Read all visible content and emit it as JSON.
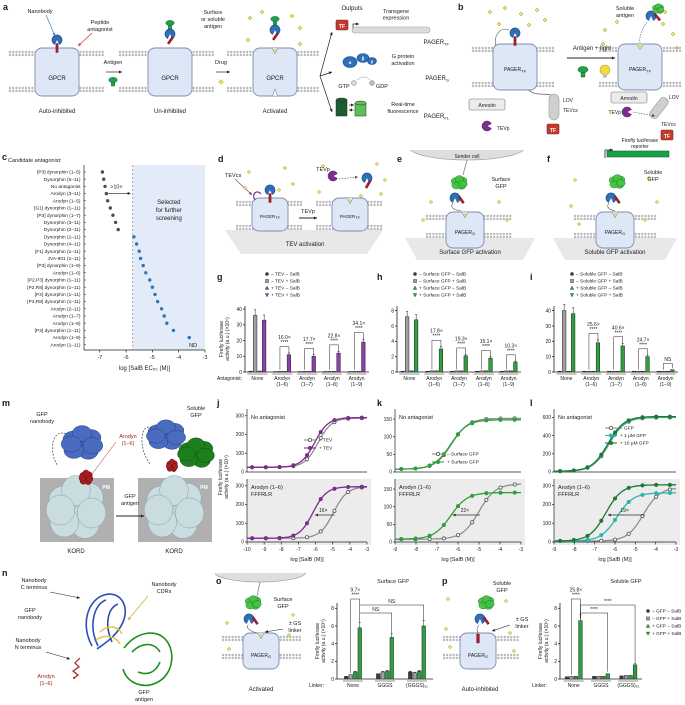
{
  "common": {
    "tf": "TF",
    "tevp": "TEVp",
    "tevcs": "TEVcs",
    "lov": "LOV",
    "arrestin": "Arrestin",
    "pm": "PM",
    "kord": "KORD",
    "pager": "PAGER",
    "gpcr": "GPCR",
    "sub_tf": "TF",
    "sub_g": "G",
    "sub_fl": "FL"
  },
  "panels": {
    "a": {
      "letter": "a",
      "nanobody": "Nanobody",
      "peptide1": "Peptide",
      "peptide2": "antagonist",
      "antigen": "Antigen",
      "surface1": "Surface",
      "surface2": "or soluble",
      "surface3": "antigen",
      "drug": "Drug",
      "state1": "Auto-inhibited",
      "state2": "Un-inhibited",
      "state3": "Activated",
      "outputs": "Outputs",
      "out1a": "Transgene",
      "out1b": "expression",
      "out2a": "G protein",
      "out2b": "activation",
      "gtp": "GTP",
      "gdp": "GDP",
      "out3a": "Real-time",
      "out3b": "fluorescence",
      "alpha": "α",
      "beta": "β",
      "gamma": "γ"
    },
    "b": {
      "letter": "b",
      "antigen_light": "Antigen + light",
      "soluble1": "Soluble",
      "soluble2": "antigen",
      "reporter1": "Firefly luciferase",
      "reporter2": "reporter"
    },
    "c": {
      "letter": "c"
    },
    "d": {
      "letter": "d",
      "arrow": "TEVp",
      "caption": "TEV activation"
    },
    "e": {
      "letter": "e",
      "sender": "Sender cell",
      "antigen1": "Surface",
      "antigen2": "GFP",
      "caption": "Surface GFP activation"
    },
    "f": {
      "letter": "f",
      "antigen1": "Soluble",
      "antigen2": "GFP",
      "caption": "Soluble GFP activation"
    },
    "g": {
      "letter": "g"
    },
    "h": {
      "letter": "h"
    },
    "i": {
      "letter": "i"
    },
    "j": {
      "letter": "j"
    },
    "k": {
      "letter": "k"
    },
    "l": {
      "letter": "l"
    },
    "m": {
      "letter": "m",
      "nb1": "GFP",
      "nb2": "nanobody",
      "arodyn1": "Arodyn",
      "arodyn2": "(1–6)",
      "soluble1": "Soluble",
      "soluble2": "GFP",
      "arrow1": "GFP",
      "arrow2": "antigen"
    },
    "n": {
      "letter": "n",
      "c1": "Nanobody",
      "c2": "C terminus",
      "nb1": "GFP",
      "nb2": "nanobody",
      "cdr1": "Nanobody",
      "cdr2": "CDRs",
      "n1": "Nanobody",
      "n2": "N terminus",
      "aro1": "Arodyn",
      "aro2": "(1–6)",
      "ant1": "GFP",
      "ant2": "antigen"
    },
    "o": {
      "letter": "o",
      "antigen1": "Surface",
      "antigen2": "GFP",
      "linker1": "± GS",
      "linker2": "linker",
      "caption": "Activated"
    },
    "p": {
      "letter": "p",
      "antigen1": "Soluble",
      "antigen2": "GFP",
      "linker1": "± GS",
      "linker2": "linker",
      "caption": "Auto-inhibited"
    }
  },
  "chart_data": [
    {
      "panel": "c",
      "type": "scatter",
      "title": "Candidate antagonist:",
      "xlabel": "log [SalB EC₅₀ (M)]",
      "xlim": [
        -7.6,
        -3.0
      ],
      "xticks": [
        -7,
        -6,
        -5,
        -4,
        -3
      ],
      "threshold": -5.75,
      "annotation": ">10×",
      "region_label": [
        "Selected",
        "for further",
        "screening"
      ],
      "nd_label": "ND",
      "points": [
        {
          "label": "[P3] dynorphin (1–5)",
          "value": -6.9,
          "selected": false
        },
        {
          "label": "Dynorphin (5–11)",
          "value": -6.85,
          "selected": false
        },
        {
          "label": "No antagonist",
          "value": -6.8,
          "selected": false
        },
        {
          "label": "Arodyn (3–11)",
          "value": -6.75,
          "selected": false
        },
        {
          "label": "Arodyn (1–5)",
          "value": -6.7,
          "selected": false
        },
        {
          "label": "[G1] dynorphin (1–11)",
          "value": -6.6,
          "selected": false
        },
        {
          "label": "[P3] dynorphin (1–7)",
          "value": -6.5,
          "selected": false
        },
        {
          "label": "Dynorphin (3–11)",
          "value": -6.4,
          "selected": false
        },
        {
          "label": "Dynorphin (2–11)",
          "value": -6.3,
          "selected": false
        },
        {
          "label": "Dynorphin (1–11)",
          "value": -5.7,
          "selected": true
        },
        {
          "label": "Dynorphin (4–11)",
          "value": -5.6,
          "selected": true
        },
        {
          "label": "[F1] dynorphin (1–11)",
          "value": -5.5,
          "selected": true
        },
        {
          "label": "JVA-901 (1–11)",
          "value": -5.45,
          "selected": true
        },
        {
          "label": "[P3] dynorphin (1–9)",
          "value": -5.35,
          "selected": true
        },
        {
          "label": "Arodyn (1–6)",
          "value": -5.25,
          "selected": true
        },
        {
          "label": "[P2,P3] dynorphin (1–11)",
          "value": -5.1,
          "selected": true
        },
        {
          "label": "[P2,R8] dynorphin (1–11)",
          "value": -5.0,
          "selected": true
        },
        {
          "label": "[P2] dynorphin (1–11)",
          "value": -4.9,
          "selected": true
        },
        {
          "label": "[P3,R8] dynorphin (1–11)",
          "value": -4.8,
          "selected": true
        },
        {
          "label": "Arodyn (2–11)",
          "value": -4.65,
          "selected": true
        },
        {
          "label": "Arodyn (1–7)",
          "value": -4.55,
          "selected": true
        },
        {
          "label": "Arodyn (1–8)",
          "value": -4.45,
          "selected": true
        },
        {
          "label": "[P3] dynorphin (1–11)",
          "value": -4.2,
          "selected": true
        },
        {
          "label": "Arodyn (1–9)",
          "value": -3.6,
          "selected": true
        },
        {
          "label": "Arodyn (1–11)",
          "value": null,
          "selected": true
        }
      ]
    },
    {
      "panel": "g",
      "type": "bar",
      "ylabel": "Firefly luciferase\nactivity (a.u.) (×10⁵)",
      "ylim": [
        0,
        42
      ],
      "yticks": [
        0,
        10,
        20,
        30,
        40
      ],
      "xlabel_prefix": "Antagonist:",
      "categories": [
        "None",
        "Arodyn\n(1–6)",
        "Arodyn\n(1–7)",
        "Arodyn\n(1–8)",
        "Arodyn\n(1–9)"
      ],
      "series": [
        {
          "name": "– TEV – SalB",
          "marker": "circle",
          "color": "#3c3c3c",
          "values": [
            0.5,
            0.3,
            0.3,
            0.3,
            0.3
          ]
        },
        {
          "name": "– TEV + SalB",
          "marker": "square",
          "color": "#a0a0a0",
          "values": [
            36,
            0.4,
            0.4,
            0.4,
            0.4
          ]
        },
        {
          "name": "+ TEV – SalB",
          "marker": "tri",
          "color": "#8b3fa8",
          "values": [
            0.6,
            0.4,
            0.4,
            0.4,
            0.4
          ]
        },
        {
          "name": "+ TEV + SalB",
          "marker": "tri_down",
          "color": "#8b3fa8",
          "values": [
            33,
            11,
            10,
            12,
            19
          ]
        }
      ],
      "fold_annotations": [
        {
          "group": 1,
          "text": "16.0×",
          "stars": "****"
        },
        {
          "group": 2,
          "text": "17.7×",
          "stars": "****"
        },
        {
          "group": 3,
          "text": "22.8×",
          "stars": "****"
        },
        {
          "group": 4,
          "text": "34.1×",
          "stars": "****"
        }
      ]
    },
    {
      "panel": "h",
      "type": "bar",
      "ylim": [
        0,
        8.6
      ],
      "yticks": [
        0,
        2,
        4,
        6,
        8
      ],
      "categories": [
        "None",
        "Arodyn\n(1–6)",
        "Arodyn\n(1–7)",
        "Arodyn\n(1–8)",
        "Arodyn\n(1–9)"
      ],
      "series": [
        {
          "name": "– Surface GFP – SalB",
          "marker": "circle",
          "color": "#3c3c3c",
          "values": [
            0.1,
            0.1,
            0.1,
            0.1,
            0.1
          ]
        },
        {
          "name": "– Surface GFP + SalB",
          "marker": "square",
          "color": "#a0a0a0",
          "values": [
            7.2,
            0.15,
            0.15,
            0.15,
            0.15
          ]
        },
        {
          "name": "+ Surface GFP – SalB",
          "marker": "tri",
          "color": "#2f9e3f",
          "values": [
            0.15,
            0.15,
            0.15,
            0.15,
            0.15
          ]
        },
        {
          "name": "+ Surface GFP + SalB",
          "marker": "tri_down",
          "color": "#2f9e3f",
          "values": [
            6.8,
            3.0,
            2.1,
            1.8,
            1.3
          ]
        }
      ],
      "fold_annotations": [
        {
          "group": 1,
          "text": "17.8×",
          "stars": "****"
        },
        {
          "group": 2,
          "text": "19.3×",
          "stars": "****"
        },
        {
          "group": 3,
          "text": "15.1×",
          "stars": "****"
        },
        {
          "group": 4,
          "text": "10.3×",
          "stars": "****"
        }
      ]
    },
    {
      "panel": "i",
      "type": "bar",
      "ylim": [
        0,
        43
      ],
      "yticks": [
        0,
        10,
        20,
        30,
        40
      ],
      "categories": [
        "None",
        "Arodyn\n(1–6)",
        "Arodyn\n(1–7)",
        "Arodyn\n(1–8)",
        "Arodyn\n(1–9)"
      ],
      "series": [
        {
          "name": "– Soluble GFP – SalB",
          "marker": "circle",
          "color": "#3c3c3c",
          "values": [
            0.5,
            0.5,
            0.5,
            0.5,
            0.5
          ]
        },
        {
          "name": "– Soluble GFP + SalB",
          "marker": "square",
          "color": "#a0a0a0",
          "values": [
            40,
            0.5,
            0.5,
            0.5,
            0.5
          ]
        },
        {
          "name": "+ Soluble GFP – SalB",
          "marker": "tri",
          "color": "#2f9e3f",
          "values": [
            0.5,
            0.5,
            0.5,
            0.5,
            0.5
          ]
        },
        {
          "name": "+ Soluble GFP + SalB",
          "marker": "tri_down",
          "color": "#2f9e3f",
          "values": [
            38,
            19,
            17,
            10,
            1.5
          ]
        }
      ],
      "fold_annotations": [
        {
          "group": 1,
          "text": "25.6×",
          "stars": "****"
        },
        {
          "group": 2,
          "text": "40.6×",
          "stars": "****"
        },
        {
          "group": 3,
          "text": "24.7×",
          "stars": "****"
        },
        {
          "group": 4,
          "text": "",
          "stars": "NS"
        }
      ]
    },
    {
      "panel": "j",
      "type": "sigmoid",
      "ylabel": "Firefly luciferase\nactivity (a.u.) (×10⁴)",
      "xlabel": "log [SalB (M)]",
      "xlim": [
        -10,
        -3
      ],
      "xticks": [
        -10,
        -9,
        -8,
        -7,
        -6,
        -5,
        -4,
        -3
      ],
      "top": {
        "title": [
          "No antagonist"
        ],
        "ylim": [
          0,
          320
        ],
        "yticks": [
          0,
          100,
          200,
          300
        ],
        "legend": true,
        "series": [
          {
            "name": "– TEV",
            "color": "#8f8f8f",
            "open": true,
            "bottom": 25,
            "top": 288,
            "ec50": -5.85
          },
          {
            "name": "+ TEV",
            "color": "#7b2d8e",
            "open": false,
            "bottom": 25,
            "top": 290,
            "ec50": -6.05
          }
        ]
      },
      "bottom": {
        "title": [
          "Arodyn (1–6)",
          "FFFRLR"
        ],
        "shaded": true,
        "ylim": [
          0,
          320
        ],
        "yticks": [
          0,
          100,
          200,
          300
        ],
        "shift": "16×",
        "series": [
          {
            "name": "– TEV",
            "color": "#8f8f8f",
            "open": true,
            "bottom": 20,
            "top": 295,
            "ec50": -4.95
          },
          {
            "name": "+ TEV",
            "color": "#7b2d8e",
            "open": false,
            "bottom": 20,
            "top": 295,
            "ec50": -6.15
          }
        ]
      }
    },
    {
      "panel": "k",
      "type": "sigmoid",
      "xlabel": "log [SalB (M)]",
      "xlim": [
        -9,
        -3
      ],
      "xticks": [
        -9,
        -8,
        -7,
        -6,
        -5,
        -4,
        -3
      ],
      "top": {
        "title": [
          "No antagonist"
        ],
        "ylim": [
          0,
          170
        ],
        "yticks": [
          0,
          50,
          100,
          150
        ],
        "legend": true,
        "series": [
          {
            "name": "– Surface GFP",
            "color": "#8f8f8f",
            "open": true,
            "bottom": 8,
            "top": 152,
            "ec50": -6.3
          },
          {
            "name": "+ Surface GFP",
            "color": "#2f9e3f",
            "open": false,
            "bottom": 8,
            "top": 148,
            "ec50": -6.35
          }
        ]
      },
      "bottom": {
        "title": [
          "Arodyn (1–6)",
          "FFFRLR"
        ],
        "shaded": true,
        "ylim": [
          0,
          170
        ],
        "yticks": [
          0,
          50,
          100,
          150
        ],
        "shift": "22×",
        "series": [
          {
            "name": "– Surface GFP",
            "color": "#8f8f8f",
            "open": true,
            "bottom": 8,
            "top": 165,
            "ec50": -5.0
          },
          {
            "name": "+ Surface GFP",
            "color": "#2f9e3f",
            "open": false,
            "bottom": 8,
            "top": 140,
            "ec50": -6.35
          }
        ]
      }
    },
    {
      "panel": "l",
      "type": "sigmoid",
      "xlabel": "log [SalB (M)]",
      "xlim": [
        -9,
        -3
      ],
      "xticks": [
        -9,
        -8,
        -7,
        -6,
        -5,
        -4,
        -3
      ],
      "top": {
        "title": [
          "No antagonist"
        ],
        "ylim": [
          0,
          660
        ],
        "yticks": [
          0,
          200,
          400,
          600
        ],
        "legend": true,
        "series": [
          {
            "name": "– GFP",
            "color": "#8f8f8f",
            "open": true,
            "bottom": 8,
            "top": 600,
            "ec50": -6.3
          },
          {
            "name": "+ 1 μM GFP",
            "color": "#2ab7a9",
            "open": false,
            "bottom": 8,
            "top": 605,
            "ec50": -6.32
          },
          {
            "name": "+ 10 μM GFP",
            "color": "#1b7a2e",
            "open": false,
            "bottom": 8,
            "top": 610,
            "ec50": -6.35
          }
        ]
      },
      "bottom": {
        "title": [
          "Arodyn (1–6)",
          "FFFRLR"
        ],
        "shaded": true,
        "ylim": [
          0,
          320
        ],
        "yticks": [
          0,
          100,
          200,
          300
        ],
        "shift": "19×",
        "series": [
          {
            "name": "– GFP",
            "color": "#8f8f8f",
            "open": true,
            "bottom": 5,
            "top": 290,
            "ec50": -4.6
          },
          {
            "name": "+ 1 μM GFP",
            "color": "#2ab7a9",
            "open": false,
            "bottom": 5,
            "top": 262,
            "ec50": -5.9
          },
          {
            "name": "+ 10 μM GFP",
            "color": "#1b7a2e",
            "open": false,
            "bottom": 5,
            "top": 305,
            "ec50": -6.45
          }
        ]
      }
    },
    {
      "panel": "o",
      "type": "bar",
      "title": "Surface GFP",
      "ylabel": "Firefly luciferase\nactivity (a.u.) (×10⁵)",
      "ylim": [
        0,
        8.6
      ],
      "yticks": [
        0,
        2,
        4,
        6,
        8
      ],
      "xlabel_prefix": "Linker:",
      "categories": [
        "None",
        "GGGS",
        "(GGGS)ₓ₂"
      ],
      "series": [
        {
          "name": "– GFP – SalB",
          "marker": "circle",
          "color": "#3c3c3c",
          "values": [
            0.3,
            0.6,
            0.8
          ]
        },
        {
          "name": "– GFP + SalB",
          "marker": "square",
          "color": "#a0a0a0",
          "values": [
            0.5,
            0.8,
            0.7
          ]
        },
        {
          "name": "+ GFP – SalB",
          "marker": "tri",
          "color": "#2f9e3f",
          "values": [
            0.8,
            0.9,
            0.9
          ]
        },
        {
          "name": "+ GFP + SalB",
          "marker": "tri_down",
          "color": "#2f9e3f",
          "values": [
            5.8,
            4.7,
            6.0
          ]
        }
      ],
      "fold_annotations": [
        {
          "group": 0,
          "text": "9.7×",
          "stars": "****"
        }
      ],
      "cross_annotations": [
        {
          "from": 0,
          "to": 1,
          "text": "NS"
        },
        {
          "from": 0,
          "to": 2,
          "text": "NS"
        }
      ]
    },
    {
      "panel": "p",
      "type": "bar",
      "title": "Soluble GFP",
      "ylabel": "Firefly luciferase\nactivity (a.u.) (×10⁵)",
      "ylim": [
        0,
        8.6
      ],
      "yticks": [
        0,
        2,
        4,
        6,
        8
      ],
      "xlabel_prefix": "Linker:",
      "legend_right": true,
      "categories": [
        "None",
        "GGGS",
        "(GGGS)ₓ₂"
      ],
      "series": [
        {
          "name": "– GFP – SalB",
          "marker": "circle",
          "color": "#3c3c3c",
          "values": [
            0.25,
            0.3,
            0.35
          ]
        },
        {
          "name": "– GFP + SalB",
          "marker": "square",
          "color": "#a0a0a0",
          "values": [
            0.3,
            0.3,
            0.4
          ]
        },
        {
          "name": "+ GFP – SalB",
          "marker": "tri",
          "color": "#2f9e3f",
          "values": [
            0.3,
            0.3,
            0.4
          ]
        },
        {
          "name": "+ GFP + SalB",
          "marker": "tri_down",
          "color": "#2f9e3f",
          "values": [
            6.6,
            0.6,
            1.6
          ]
        }
      ],
      "fold_annotations": [
        {
          "group": 0,
          "text": "25.8×",
          "stars": "****"
        }
      ],
      "cross_annotations": [
        {
          "from": 0,
          "to": 1,
          "text": "****"
        },
        {
          "from": 0,
          "to": 2,
          "text": "****"
        }
      ]
    }
  ]
}
